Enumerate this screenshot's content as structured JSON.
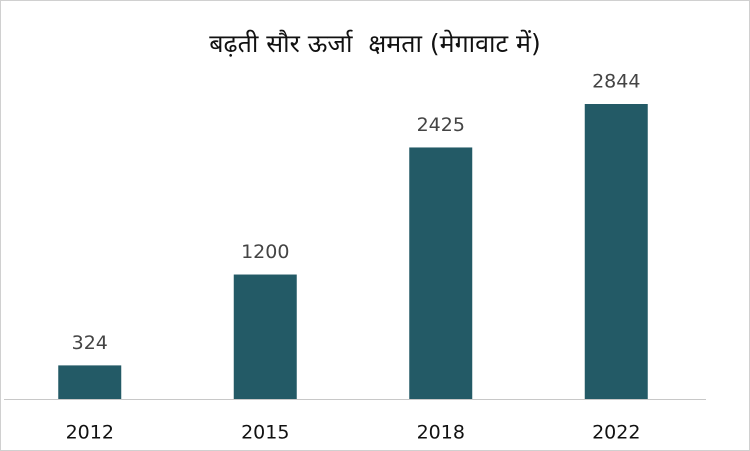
{
  "chart_data": {
    "type": "bar",
    "title": "बढ़ती सौर ऊर्जा  क्षमता (मेगावाट में)",
    "categories": [
      "2012",
      "2015",
      "2018",
      "2022"
    ],
    "values": [
      324,
      1200,
      2425,
      2844
    ],
    "color": "#235a66"
  }
}
